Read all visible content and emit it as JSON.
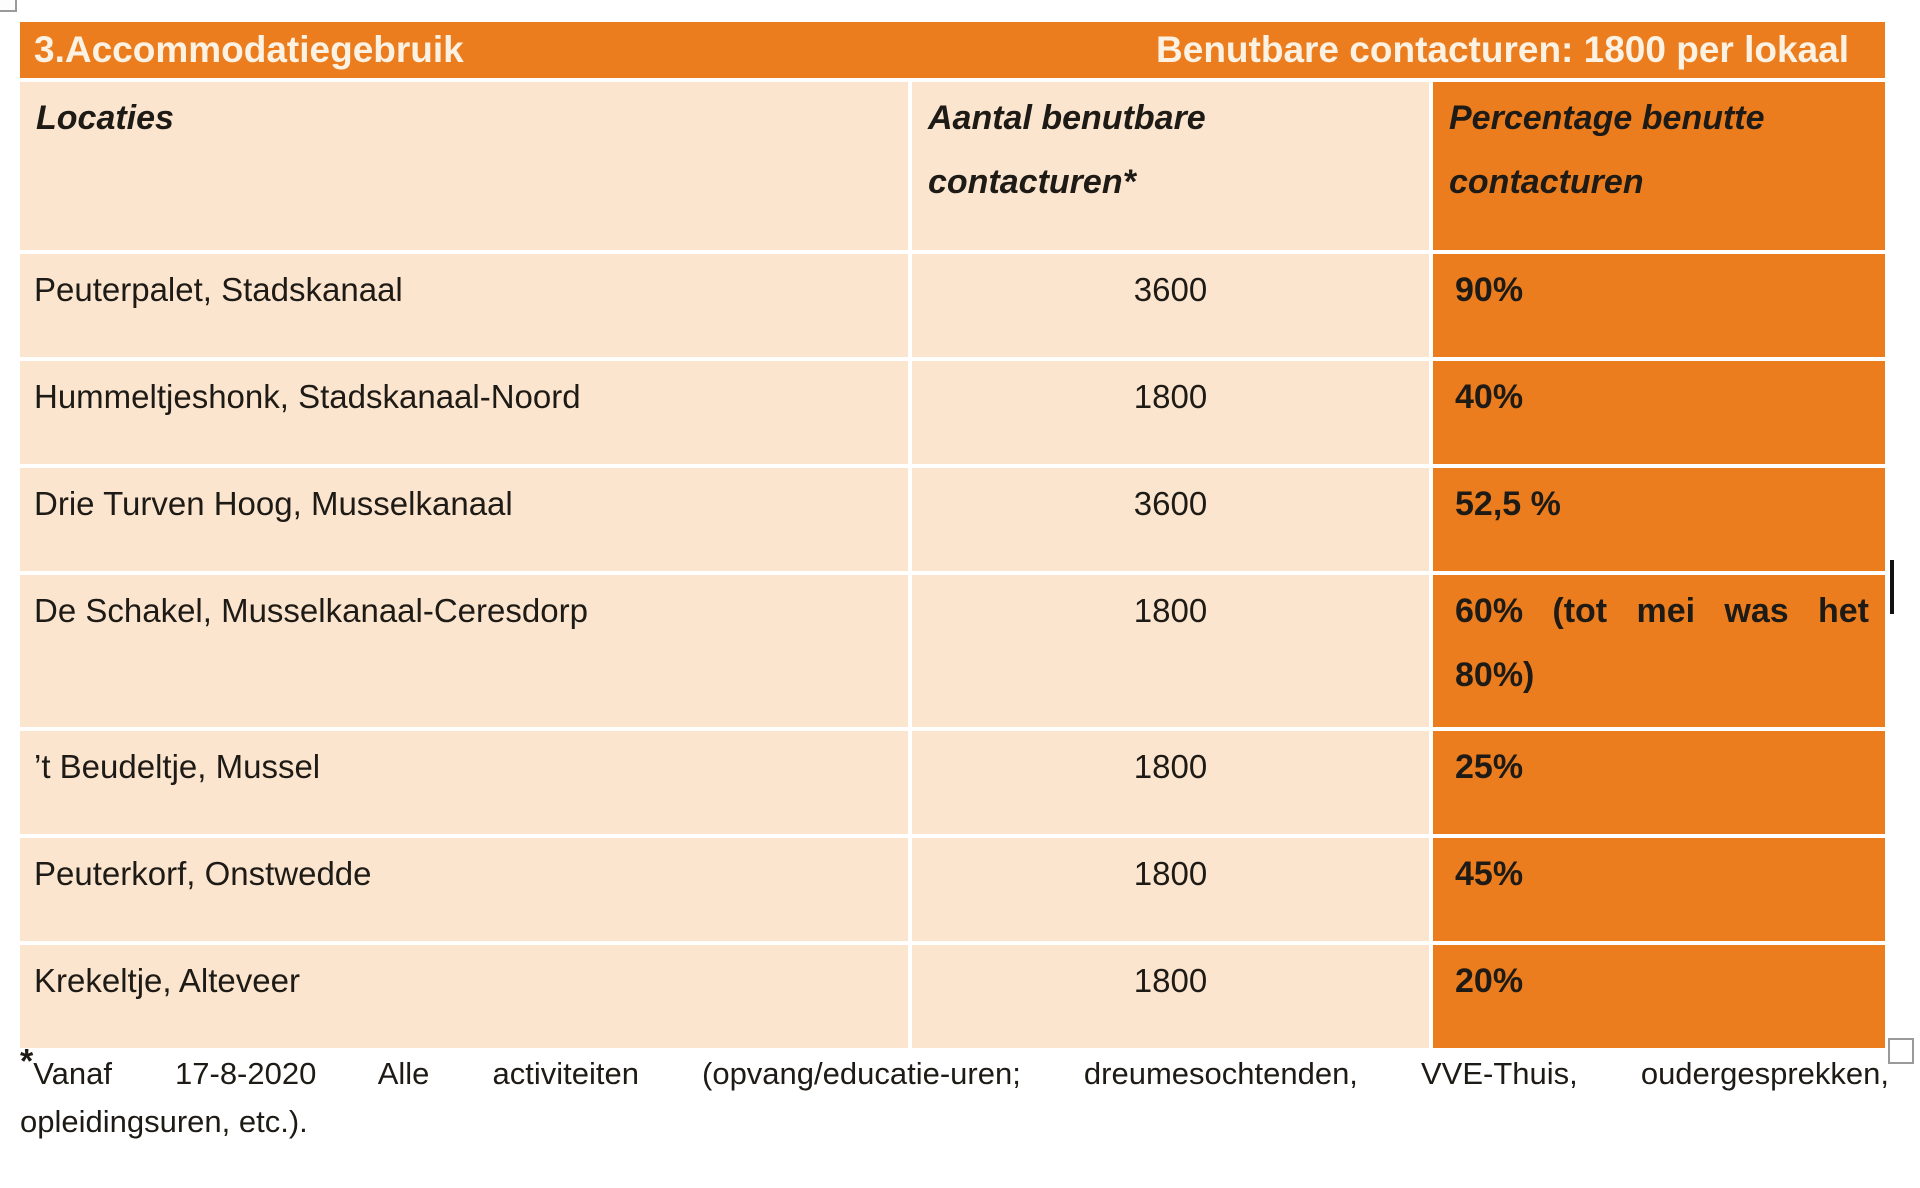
{
  "colors": {
    "orange": "#EC7D1E",
    "peach": "#FBE5CE",
    "title_text": "#FBF2E4",
    "body_text": "#1E1B16"
  },
  "table": {
    "title_left": "3.Accommodatiegebruik",
    "title_right": "Benutbare contacturen: 1800 per lokaal",
    "columns": {
      "locations": "Locaties",
      "available_line1": "Aantal benutbare",
      "available_line2": "contacturen*",
      "percentage_line1": "Percentage benutte",
      "percentage_line2": "contacturen"
    },
    "rows": [
      {
        "location": "Peuterpalet, Stadskanaal",
        "hours": "3600",
        "pct1": "90%",
        "pct2": ""
      },
      {
        "location": "Hummeltjeshonk, Stadskanaal-Noord",
        "hours": "1800",
        "pct1": "40%",
        "pct2": ""
      },
      {
        "location": "Drie Turven Hoog, Musselkanaal",
        "hours": "3600",
        "pct1": "52,5 %",
        "pct2": ""
      },
      {
        "location": "De Schakel, Musselkanaal-Ceresdorp",
        "hours": "1800",
        "pct1": "60% (tot mei was het",
        "pct2": "80%)"
      },
      {
        "location": "’t Beudeltje, Mussel",
        "hours": "1800",
        "pct1": "25%",
        "pct2": ""
      },
      {
        "location": "Peuterkorf, Onstwedde",
        "hours": "1800",
        "pct1": "45%",
        "pct2": ""
      },
      {
        "location": "Krekeltje, Alteveer",
        "hours": "1800",
        "pct1": "20%",
        "pct2": ""
      }
    ]
  },
  "footnote": {
    "asterisk": "*",
    "line1": "Vanaf 17-8-2020 Alle activiteiten (opvang/educatie-uren; dreumesochtenden, VVE-Thuis, oudergesprekken,",
    "line2": "opleidingsuren, etc.)."
  }
}
